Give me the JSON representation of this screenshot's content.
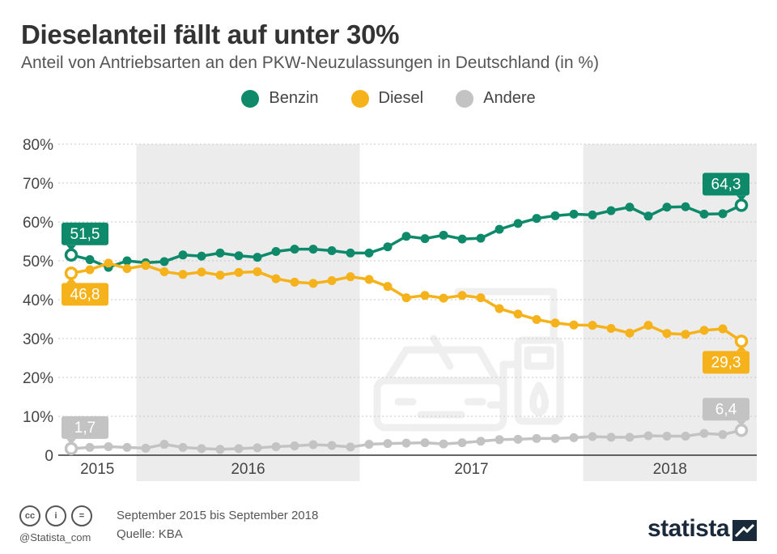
{
  "header": {
    "title": "Dieselanteil fällt auf unter 30%",
    "subtitle": "Anteil von Antriebsarten an den PKW-Neuzulassungen in Deutschland (in %)"
  },
  "legend": [
    {
      "label": "Benzin",
      "color": "#0e8a6a"
    },
    {
      "label": "Diesel",
      "color": "#f5b21b"
    },
    {
      "label": "Andere",
      "color": "#c3c3c3"
    }
  ],
  "chart_data": {
    "type": "line",
    "y_ticks": [
      "0",
      "10%",
      "20%",
      "30%",
      "40%",
      "50%",
      "60%",
      "70%",
      "80%"
    ],
    "ylim": [
      0,
      80
    ],
    "grid": true,
    "x_months": [
      "2015-09",
      "2015-10",
      "2015-11",
      "2015-12",
      "2016-01",
      "2016-02",
      "2016-03",
      "2016-04",
      "2016-05",
      "2016-06",
      "2016-07",
      "2016-08",
      "2016-09",
      "2016-10",
      "2016-11",
      "2016-12",
      "2017-01",
      "2017-02",
      "2017-03",
      "2017-04",
      "2017-05",
      "2017-06",
      "2017-07",
      "2017-08",
      "2017-09",
      "2017-10",
      "2017-11",
      "2017-12",
      "2018-01",
      "2018-02",
      "2018-03",
      "2018-04",
      "2018-05",
      "2018-06",
      "2018-07",
      "2018-08",
      "2018-09"
    ],
    "year_labels": [
      {
        "label": "2015",
        "from": "2015-09",
        "to": "2015-12"
      },
      {
        "label": "2016",
        "from": "2016-01",
        "to": "2016-12"
      },
      {
        "label": "2017",
        "from": "2017-01",
        "to": "2017-12"
      },
      {
        "label": "2018",
        "from": "2018-01",
        "to": "2018-09"
      }
    ],
    "shaded_years": [
      "2016",
      "2018"
    ],
    "series": [
      {
        "name": "Benzin",
        "color": "#0e8a6a",
        "values": [
          51.5,
          50.3,
          48.3,
          50.0,
          49.5,
          49.8,
          51.5,
          51.2,
          52.0,
          51.3,
          50.9,
          52.4,
          53.0,
          53.0,
          52.6,
          52.0,
          52.0,
          53.6,
          56.3,
          55.7,
          56.6,
          55.6,
          55.8,
          58.1,
          59.6,
          60.9,
          61.6,
          62.0,
          61.8,
          62.9,
          63.8,
          61.5,
          63.8,
          63.9,
          62.0,
          62.1,
          64.3
        ]
      },
      {
        "name": "Diesel",
        "color": "#f5b21b",
        "values": [
          46.8,
          47.7,
          49.4,
          48.0,
          48.8,
          47.2,
          46.5,
          47.1,
          46.3,
          47.0,
          47.2,
          45.4,
          44.5,
          44.2,
          44.9,
          45.9,
          45.2,
          43.4,
          40.5,
          41.1,
          40.4,
          41.1,
          40.5,
          37.7,
          36.3,
          34.9,
          34.0,
          33.5,
          33.4,
          32.6,
          31.4,
          33.4,
          31.3,
          31.1,
          32.1,
          32.5,
          29.3
        ]
      },
      {
        "name": "Andere",
        "color": "#c3c3c3",
        "values": [
          1.7,
          2.0,
          2.2,
          2.0,
          1.8,
          2.8,
          2.0,
          1.7,
          1.5,
          1.7,
          1.9,
          2.2,
          2.4,
          2.7,
          2.5,
          2.1,
          2.8,
          3.0,
          3.1,
          3.2,
          2.9,
          3.2,
          3.6,
          4.0,
          4.1,
          4.3,
          4.3,
          4.5,
          4.8,
          4.6,
          4.6,
          5.0,
          4.9,
          4.9,
          5.6,
          5.3,
          6.4
        ]
      }
    ],
    "annotations": [
      {
        "series": "Benzin",
        "point": 0,
        "text": "51,5",
        "pos": "above"
      },
      {
        "series": "Diesel",
        "point": 0,
        "text": "46,8",
        "pos": "below"
      },
      {
        "series": "Andere",
        "point": 0,
        "text": "1,7",
        "pos": "above"
      },
      {
        "series": "Benzin",
        "point": 36,
        "text": "64,3",
        "pos": "above"
      },
      {
        "series": "Diesel",
        "point": 36,
        "text": "29,3",
        "pos": "below"
      },
      {
        "series": "Andere",
        "point": 36,
        "text": "6,4",
        "pos": "above"
      }
    ]
  },
  "footer": {
    "cc_icons": [
      "cc",
      "i",
      "="
    ],
    "handle": "@Statista_com",
    "period": "September 2015 bis September 2018",
    "source": "Quelle: KBA",
    "brand": "statista"
  }
}
